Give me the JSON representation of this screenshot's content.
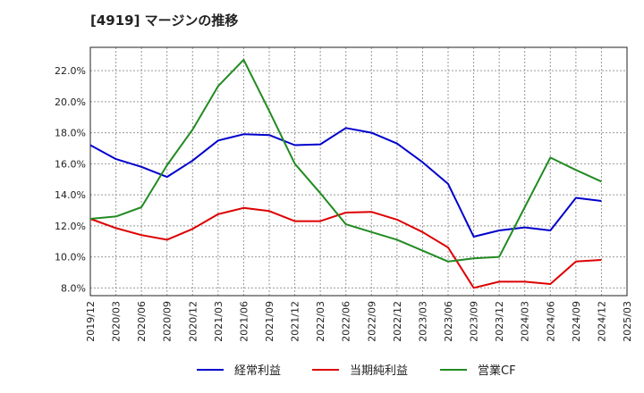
{
  "chart_data": {
    "type": "line",
    "title": "[4919]  マージンの推移",
    "x": [
      "2019/12",
      "2020/03",
      "2020/06",
      "2020/09",
      "2020/12",
      "2021/03",
      "2021/06",
      "2021/09",
      "2021/12",
      "2022/03",
      "2022/06",
      "2022/09",
      "2022/12",
      "2023/03",
      "2023/06",
      "2023/09",
      "2023/12",
      "2024/03",
      "2024/06",
      "2024/09",
      "2024/12"
    ],
    "x_ticks": [
      "2019/12",
      "2020/03",
      "2020/06",
      "2020/09",
      "2020/12",
      "2021/03",
      "2021/06",
      "2021/09",
      "2021/12",
      "2022/03",
      "2022/06",
      "2022/09",
      "2022/12",
      "2023/03",
      "2023/06",
      "2023/09",
      "2023/12",
      "2024/03",
      "2024/06",
      "2024/09",
      "2024/12",
      "2025/03"
    ],
    "y_ticks": [
      "8.0%",
      "10.0%",
      "12.0%",
      "14.0%",
      "16.0%",
      "18.0%",
      "20.0%",
      "22.0%"
    ],
    "ylim": [
      7.5,
      23.5
    ],
    "grid": true,
    "legend_position": "bottom",
    "series": [
      {
        "name": "経常利益",
        "color": "#0000cc",
        "values": [
          17.2,
          16.3,
          15.8,
          15.15,
          16.2,
          17.5,
          17.9,
          17.85,
          17.2,
          17.25,
          18.3,
          18.0,
          17.3,
          16.1,
          14.7,
          11.3,
          11.7,
          11.9,
          11.7,
          13.8,
          13.6
        ]
      },
      {
        "name": "当期純利益",
        "color": "#dd0000",
        "values": [
          12.45,
          11.85,
          11.4,
          11.1,
          11.8,
          12.75,
          13.15,
          12.95,
          12.3,
          12.3,
          12.85,
          12.9,
          12.4,
          11.6,
          10.6,
          8.0,
          8.4,
          8.4,
          8.25,
          9.7,
          9.8
        ]
      },
      {
        "name": "営業CF",
        "color": "#228b22",
        "values": [
          12.45,
          12.6,
          13.2,
          15.9,
          18.2,
          21.0,
          22.7,
          19.4,
          16.0,
          14.1,
          12.1,
          11.6,
          11.1,
          10.4,
          9.7,
          9.9,
          10.0,
          13.2,
          16.4,
          15.6,
          14.85
        ]
      }
    ]
  }
}
